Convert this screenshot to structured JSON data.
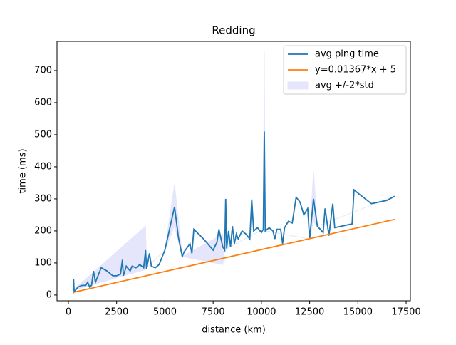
{
  "chart_data": {
    "type": "line",
    "title": "Redding",
    "xlabel": "distance (km)",
    "ylabel": "time (ms)",
    "xlim": [
      -590,
      17720
    ],
    "ylim": [
      -18,
      791
    ],
    "xticks": [
      0,
      2500,
      5000,
      7500,
      10000,
      12500,
      15000,
      17500
    ],
    "yticks": [
      0,
      100,
      200,
      300,
      400,
      500,
      600,
      700
    ],
    "legend": "upper right",
    "series": [
      {
        "name": "avg ping time",
        "color": "#1f77b4",
        "x": [
          250,
          270,
          300,
          500,
          700,
          900,
          1000,
          1100,
          1200,
          1300,
          1400,
          1500,
          1700,
          2000,
          2300,
          2500,
          2700,
          2800,
          2850,
          3000,
          3200,
          3300,
          3500,
          3700,
          3900,
          4000,
          4050,
          4200,
          4300,
          4500,
          4700,
          5000,
          5500,
          5700,
          5900,
          6000,
          6300,
          6400,
          6500,
          7000,
          7500,
          7700,
          7800,
          8000,
          8100,
          8150,
          8200,
          8300,
          8400,
          8500,
          8600,
          8700,
          8800,
          9000,
          9200,
          9400,
          9500,
          9600,
          9800,
          10000,
          10100,
          10150,
          10200,
          10400,
          10600,
          10700,
          10800,
          11000,
          11100,
          11200,
          11400,
          11600,
          11800,
          12000,
          12200,
          12400,
          12500,
          12700,
          12900,
          13200,
          13300,
          13500,
          13700,
          13800,
          14700,
          14800,
          15000,
          15700,
          16500,
          16900
        ],
        "values": [
          15,
          50,
          10,
          25,
          30,
          30,
          40,
          25,
          30,
          75,
          40,
          55,
          85,
          75,
          60,
          60,
          65,
          110,
          60,
          90,
          75,
          90,
          85,
          95,
          85,
          140,
          80,
          130,
          90,
          85,
          95,
          140,
          275,
          180,
          120,
          135,
          160,
          130,
          205,
          175,
          140,
          165,
          205,
          150,
          140,
          300,
          145,
          200,
          150,
          215,
          160,
          190,
          175,
          200,
          190,
          175,
          298,
          200,
          210,
          195,
          205,
          510,
          200,
          210,
          200,
          175,
          205,
          205,
          160,
          210,
          230,
          225,
          305,
          290,
          250,
          270,
          175,
          300,
          215,
          195,
          270,
          185,
          285,
          210,
          222,
          328,
          318,
          285,
          295,
          308
        ]
      },
      {
        "name": "y=0.01367*x + 5",
        "color": "#ff7f0e",
        "x": [
          250,
          16900
        ],
        "values": [
          8.4,
          236.0
        ]
      },
      {
        "name": "avg +/-2*std",
        "color": "#e5e5fb",
        "type": "band",
        "x": [
          250,
          4000,
          4050,
          5000,
          5500,
          5900,
          8000,
          8100,
          8200,
          10100,
          10150,
          10200,
          12500,
          12700,
          12900,
          16900
        ],
        "lower": [
          15,
          80,
          85,
          140,
          215,
          120,
          95,
          140,
          145,
          205,
          260,
          200,
          175,
          230,
          215,
          308
        ],
        "upper": [
          15,
          215,
          85,
          140,
          345,
          120,
          190,
          140,
          145,
          205,
          760,
          200,
          175,
          385,
          215,
          308
        ]
      }
    ]
  }
}
